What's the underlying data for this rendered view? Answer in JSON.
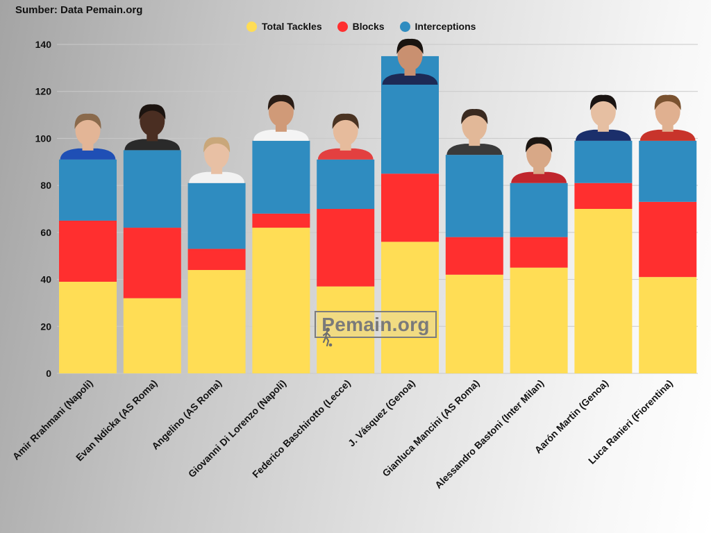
{
  "header": {
    "source": "Sumber: Data Pemain.org"
  },
  "watermark": {
    "text": "Pemain.org",
    "icon": "player-silhouette-icon"
  },
  "chart_data": {
    "type": "bar",
    "stacked": true,
    "title": "",
    "xlabel": "",
    "ylabel": "",
    "ylim": [
      0,
      140
    ],
    "yticks": [
      0,
      20,
      40,
      60,
      80,
      100,
      120,
      140
    ],
    "grid": true,
    "legend_position": "top-center",
    "categories": [
      "Amir Rrahmani (Napoli)",
      "Evan Ndicka (AS Roma)",
      "Angelino (AS Roma)",
      "Giovanni Di Lorenzo (Napoli)",
      "Federico Baschirotto (Lecce)",
      "J. Vásquez (Genoa)",
      "Gianluca Mancini (AS Roma)",
      "Alessandro Bastoni (Inter Milan)",
      "Aarón Martin (Genoa)",
      "Luca Ranieri (Fiorentina)"
    ],
    "series": [
      {
        "name": "Total Tackles",
        "color": "#ffdd55",
        "values": [
          39,
          32,
          44,
          62,
          37,
          56,
          42,
          45,
          70,
          41
        ]
      },
      {
        "name": "Blocks",
        "color": "#ff2f2f",
        "values": [
          26,
          30,
          9,
          6,
          33,
          29,
          16,
          13,
          11,
          32
        ]
      },
      {
        "name": "Interceptions",
        "color": "#2f8cc0",
        "values": [
          26,
          33,
          28,
          31,
          21,
          50,
          35,
          23,
          18,
          26
        ]
      }
    ]
  },
  "photos": {
    "shirt_colors": [
      "#1f4fb5",
      "#2a2a2a",
      "#f2f2f2",
      "#f4f4f4",
      "#e34040",
      "#1d2a55",
      "#3a3a3a",
      "#c0262d",
      "#1b2f6b",
      "#c8342b"
    ],
    "skin_colors": [
      "#e3b596",
      "#4a2e22",
      "#e8c0a4",
      "#d09a78",
      "#e6bb9c",
      "#c99070",
      "#e2b898",
      "#d8a887",
      "#e6bfa2",
      "#e0b090"
    ],
    "hair_colors": [
      "#8a6a4c",
      "#1c1410",
      "#c9a77a",
      "#2a1d16",
      "#4a3322",
      "#1a1410",
      "#3a2a20",
      "#1c1612",
      "#1a1412",
      "#7a5230"
    ]
  }
}
